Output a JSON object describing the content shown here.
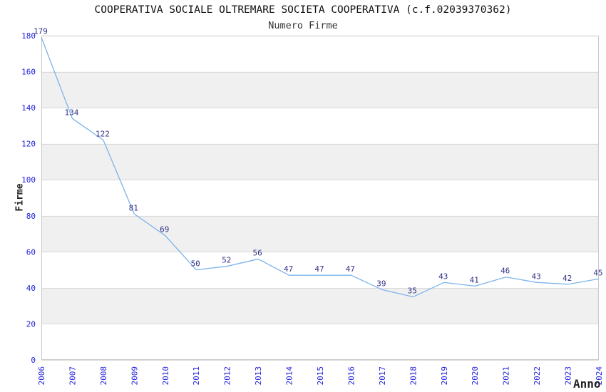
{
  "header": {
    "title": "COOPERATIVA SOCIALE OLTREMARE SOCIETA COOPERATIVA (c.f.02039370362)",
    "subtitle": "Numero Firme"
  },
  "chart_data": {
    "type": "line",
    "title": "COOPERATIVA SOCIALE OLTREMARE SOCIETA COOPERATIVA (c.f.02039370362)",
    "subtitle": "Numero Firme",
    "xlabel": "Anno",
    "ylabel": "Firme",
    "categories": [
      "2006",
      "2007",
      "2008",
      "2009",
      "2010",
      "2011",
      "2012",
      "2013",
      "2014",
      "2015",
      "2016",
      "2017",
      "2018",
      "2019",
      "2020",
      "2021",
      "2022",
      "2023",
      "2024"
    ],
    "values": [
      179,
      134,
      122,
      81,
      69,
      50,
      52,
      56,
      47,
      47,
      47,
      39,
      35,
      43,
      41,
      46,
      43,
      42,
      45
    ],
    "ylim": [
      0,
      180
    ],
    "ytick_step": 20,
    "yticks": [
      0,
      20,
      40,
      60,
      80,
      100,
      120,
      140,
      160,
      180
    ],
    "grid": "alternating-horizontal-bands",
    "legend": "none",
    "point_labels": true,
    "x_tick_rotation": -90,
    "colors": {
      "line": "#7db4eb",
      "tick_label": "#2222dd",
      "value_label": "#333388",
      "band_fill": "#f0f0f0",
      "grid_line": "#d8d8d8",
      "plot_border": "#c9c9c9",
      "title_text": "#111111",
      "axis_title_text": "#222222"
    }
  }
}
